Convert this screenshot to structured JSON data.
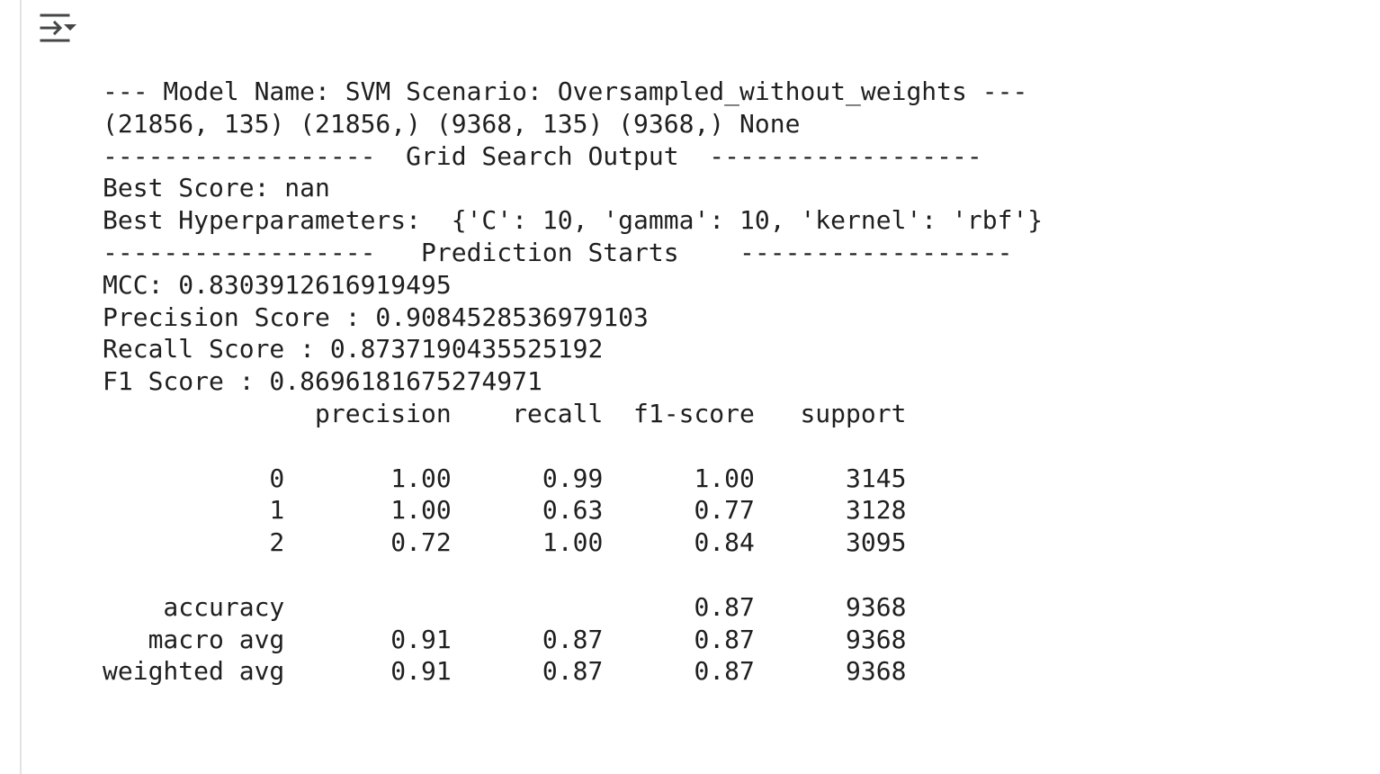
{
  "toolbar": {
    "toggle_icon": "output-collapse-icon"
  },
  "colors": {
    "text": "#1f1f1f",
    "icon": "#444746",
    "border": "#e3e3e3",
    "background": "#ffffff"
  },
  "output": {
    "lines": [
      "--- Model Name: SVM Scenario: Oversampled_without_weights ---",
      "(21856, 135) (21856,) (9368, 135) (9368,) None",
      "------------------  Grid Search Output  ------------------",
      "Best Score: nan",
      "Best Hyperparameters:  {'C': 10, 'gamma': 10, 'kernel': 'rbf'}",
      "------------------   Prediction Starts    ------------------",
      "MCC: 0.8303912616919495",
      "Precision Score : 0.9084528536979103",
      "Recall Score : 0.8737190435525192",
      "F1 Score : 0.8696181675274971",
      "              precision    recall  f1-score   support",
      "",
      "           0       1.00      0.99      1.00      3145",
      "           1       1.00      0.63      0.77      3128",
      "           2       0.72      1.00      0.84      3095",
      "",
      "    accuracy                           0.87      9368",
      "   macro avg       0.91      0.87      0.87      9368",
      "weighted avg       0.91      0.87      0.87      9368"
    ]
  }
}
